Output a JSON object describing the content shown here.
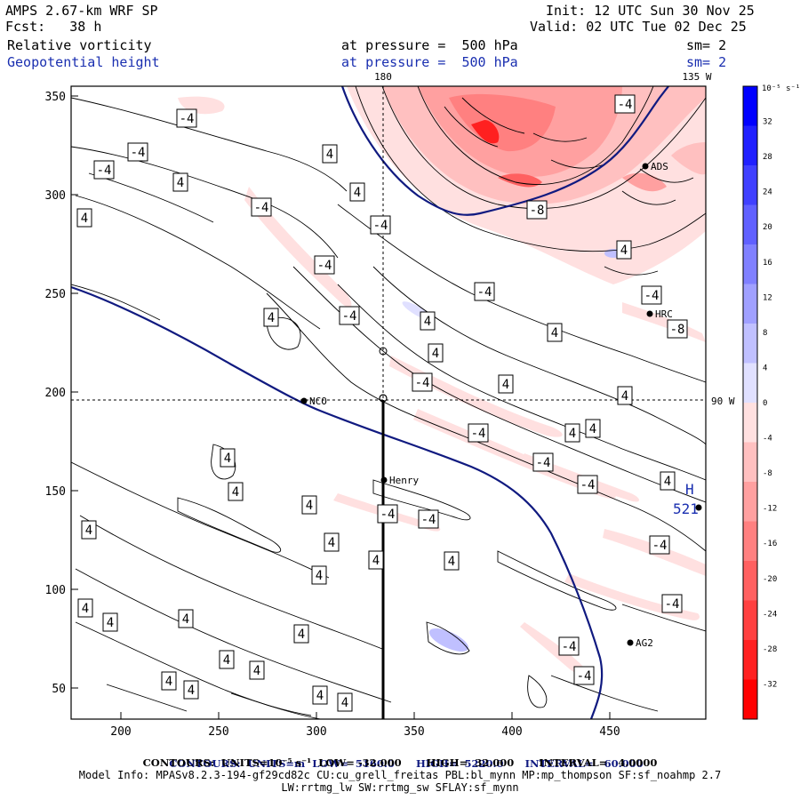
{
  "header": {
    "model": "AMPS 2.67-km WRF SP",
    "forecast": "Fcst:   38 h",
    "init": "Init: 12 UTC Sun 30 Nov 25",
    "valid": "Valid: 02 UTC Tue 02 Dec 25",
    "field1": "Relative vorticity",
    "field2": "Geopotential height",
    "pressure1": "at pressure =  500 hPa",
    "pressure2": "at pressure =  500 hPa",
    "sm1": "sm= 2",
    "sm2": "sm= 2"
  },
  "map": {
    "meridian_180": "180",
    "meridian_135w": "135 W",
    "meridian_90w": "90 W",
    "x_ticks": [
      "200",
      "250",
      "300",
      "350",
      "400",
      "450"
    ],
    "y_ticks": [
      "350",
      "300",
      "250",
      "200",
      "150",
      "100",
      "50"
    ],
    "stations": [
      {
        "name": "NCO"
      },
      {
        "name": "Henry"
      },
      {
        "name": "ADS"
      },
      {
        "name": "HRC"
      },
      {
        "name": "AG2"
      },
      {
        "name": ""
      }
    ],
    "high_label": "H",
    "high_value": "521",
    "vort_labels_pos": "4",
    "vort_labels_neg": "-4",
    "vort_label_neg8": "-8"
  },
  "colorbar": {
    "units": "10⁻⁵ s⁻¹",
    "ticks": [
      "32",
      "28",
      "24",
      "20",
      "16",
      "12",
      "8",
      "4",
      "0",
      "-4",
      "-8",
      "-12",
      "-16",
      "-20",
      "-24",
      "-28",
      "-32"
    ],
    "colors": [
      "#0000ff",
      "#2020ff",
      "#4040ff",
      "#6060ff",
      "#8080ff",
      "#a0a0ff",
      "#c0c0ff",
      "#e0e0ff",
      "#ffe0e0",
      "#ffc0c0",
      "#ffa0a0",
      "#ff8080",
      "#ff6060",
      "#ff4040",
      "#ff2020",
      "#ff0000"
    ]
  },
  "footer": {
    "line1_a": "CONTOURS:  UNITS=m  LOW=  5160.0",
    "line1_b": "HIGH=  5220.0",
    "line1_c": "INTERVAL=   60.000",
    "line2": "CONTOURS:  UNITS=10⁻⁵ s⁻¹  LOW= -32.000       HIGH=  32.000       INTERVAL=   4.0000",
    "line3": "Model Info: MPASv8.2.3-194-gf29cd82c CU:cu_grell_freitas PBL:bl_mynn MP:mp_thompson SF:sf_noahmp 2.7",
    "line4": "LW:rrtmg_lw SW:rrtmg_sw SFLAY:sf_mynn"
  }
}
